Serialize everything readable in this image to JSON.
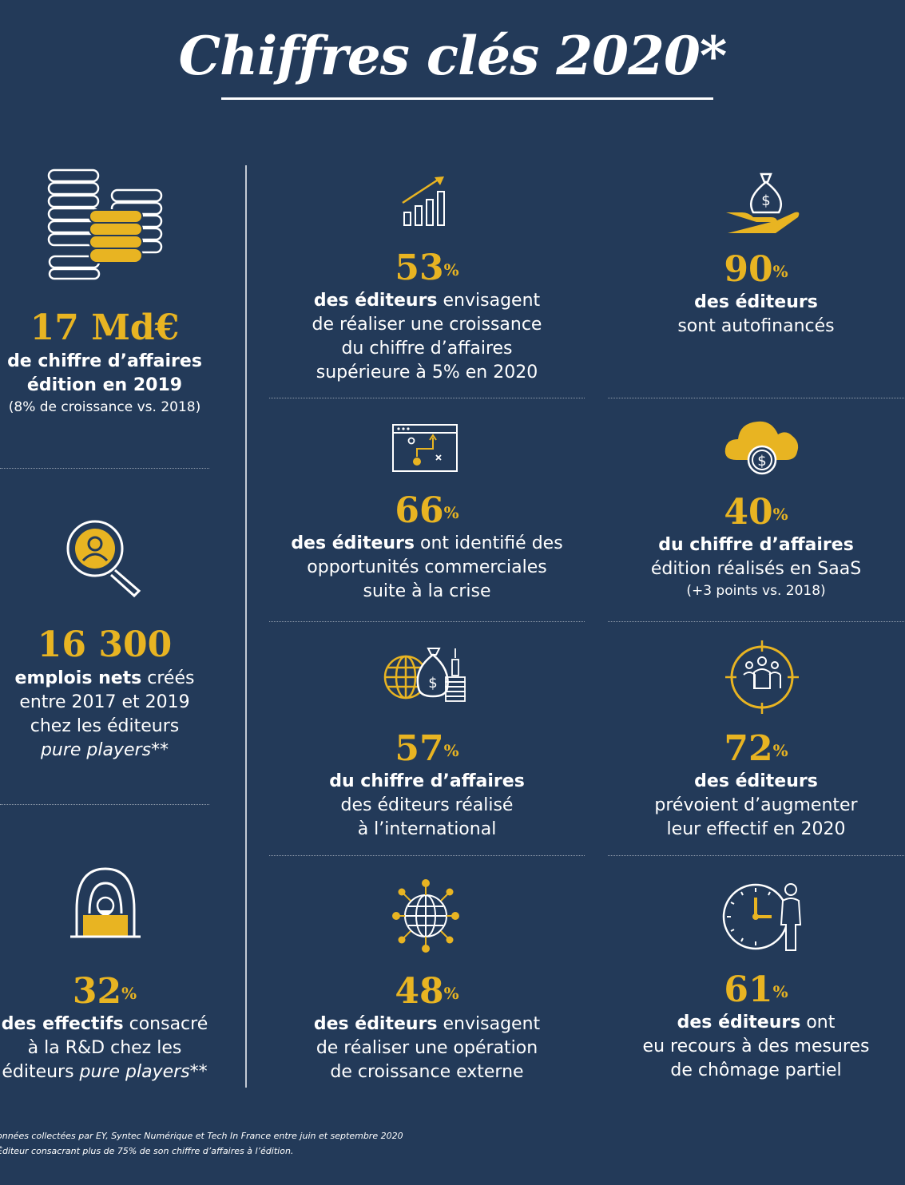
{
  "header": {
    "title": "Chiffres clés 2020*"
  },
  "left": {
    "revenue": {
      "value": "17 Md€",
      "line1": "de chiffre d’affaires",
      "line2": "édition en 2019",
      "note": "(8% de croissance vs. 2018)"
    },
    "jobs": {
      "value": "16 300",
      "line1_bold": "emplois nets",
      "line1_rest": " créés",
      "line2": "entre 2017 et 2019",
      "line3": "chez les éditeurs",
      "line4": "pure players**"
    },
    "rd": {
      "value": "32",
      "unit": "%",
      "line1_bold": "des effectifs",
      "line1_rest": " consacré",
      "line2": "à la R&D chez les",
      "line3_start": "éditeurs ",
      "line3_it": "pure players**"
    }
  },
  "stats": {
    "s53": {
      "value": "53",
      "unit": "%",
      "line1_bold": "des éditeurs",
      "line1_rest": " envisagent",
      "line2": "de réaliser une croissance",
      "line3": "du chiffre d’affaires",
      "line4": "supérieure à 5% en 2020"
    },
    "s90": {
      "value": "90",
      "unit": "%",
      "line1_bold": "des éditeurs",
      "line2": "sont autofinancés"
    },
    "s66": {
      "value": "66",
      "unit": "%",
      "line1_bold": "des éditeurs",
      "line1_rest": " ont identifié des",
      "line2": "opportunités commerciales",
      "line3": "suite à la crise"
    },
    "s40": {
      "value": "40",
      "unit": "%",
      "line1_bold": "du chiffre d’affaires",
      "line2": "édition réalisés en SaaS",
      "note": "(+3 points vs. 2018)"
    },
    "s57": {
      "value": "57",
      "unit": "%",
      "line1_bold": "du chiffre d’affaires",
      "line2": "des éditeurs réalisé",
      "line3": "à l’international"
    },
    "s72": {
      "value": "72",
      "unit": "%",
      "line1_bold": "des éditeurs",
      "line2": "prévoient d’augmenter",
      "line3": "leur effectif en 2020"
    },
    "s48": {
      "value": "48",
      "unit": "%",
      "line1_bold": "des éditeurs",
      "line1_rest": " envisagent",
      "line2": "de réaliser une opération",
      "line3": "de croissance externe"
    },
    "s61": {
      "value": "61",
      "unit": "%",
      "line1_bold": "des éditeurs",
      "line1_rest": " ont",
      "line2": "eu recours à des mesures",
      "line3": "de chômage partiel"
    }
  },
  "footnotes": {
    "line1": "onnées collectées par EY, Syntec Numérique et Tech In France entre juin et septembre 2020",
    "line2": "Éditeur consacrant plus de 75% de son chiffre d’affaires à l’édition."
  },
  "icons": [
    "coins-icon",
    "search-person-icon",
    "hacker-laptop-icon",
    "growth-chart-icon",
    "hand-money-bag-icon",
    "browser-strategy-icon",
    "cloud-dollar-icon",
    "globe-money-icon",
    "team-target-icon",
    "globe-network-icon",
    "clock-person-icon"
  ],
  "colors": {
    "background": "#233a59",
    "accent": "#e8b422",
    "text": "#ffffff"
  }
}
